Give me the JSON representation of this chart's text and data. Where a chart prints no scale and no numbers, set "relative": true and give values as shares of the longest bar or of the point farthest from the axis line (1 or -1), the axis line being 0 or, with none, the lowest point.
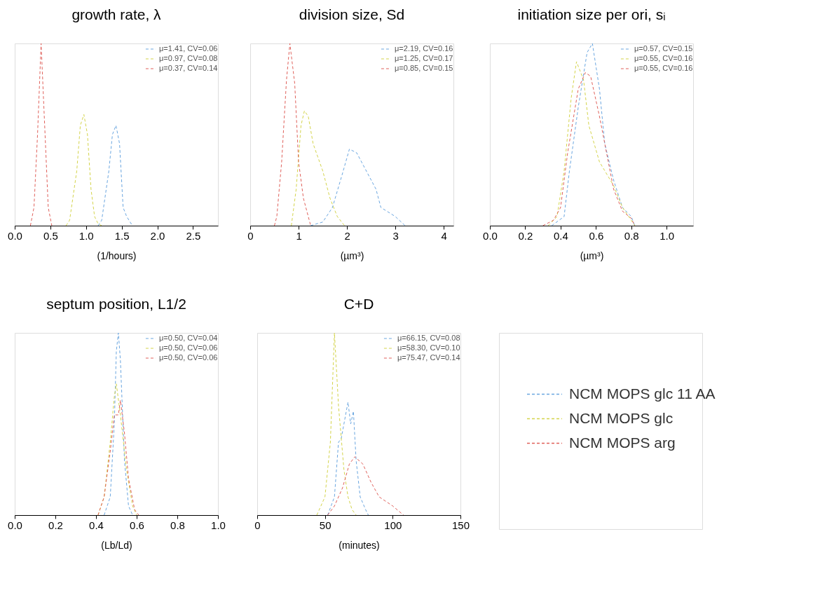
{
  "chart_data": [
    {
      "type": "line",
      "title": "growth rate, λ",
      "xlabel": "(1/hours)",
      "relative": true,
      "legend": "top right",
      "line_style": "dashed",
      "xlim": [
        0,
        2.85
      ],
      "xticks": [
        {
          "value": 0,
          "label": "0.0"
        },
        {
          "value": 0.5,
          "label": "0.5"
        },
        {
          "value": 1,
          "label": "1.0"
        },
        {
          "value": 1.5,
          "label": "1.5"
        },
        {
          "value": 2,
          "label": "2.0"
        },
        {
          "value": 2.5,
          "label": "2.5"
        }
      ],
      "series": [
        {
          "name": "μ=1.41, CV=0.06",
          "color": "#6aa6e0",
          "x": [
            1.17,
            1.22,
            1.32,
            1.37,
            1.42,
            1.47,
            1.52,
            1.57,
            1.65
          ],
          "values": [
            0,
            0.03,
            0.3,
            0.5,
            0.55,
            0.45,
            0.1,
            0.05,
            0
          ]
        },
        {
          "name": "μ=0.97, CV=0.08",
          "color": "#d4d44a",
          "x": [
            0.72,
            0.77,
            0.87,
            0.92,
            0.97,
            1.02,
            1.07,
            1.12,
            1.17,
            1.22
          ],
          "values": [
            0,
            0.03,
            0.3,
            0.55,
            0.61,
            0.5,
            0.2,
            0.05,
            0.01,
            0
          ]
        },
        {
          "name": "μ=0.37, CV=0.14",
          "color": "#e0605a",
          "x": [
            0.22,
            0.27,
            0.32,
            0.37,
            0.42,
            0.47,
            0.52
          ],
          "values": [
            0,
            0.1,
            0.5,
            1.0,
            0.55,
            0.1,
            0
          ]
        }
      ]
    },
    {
      "type": "line",
      "title": "division size, Sd",
      "xlabel": "(µm³)",
      "relative": true,
      "legend": "top right",
      "line_style": "dashed",
      "xlim": [
        0,
        4.2
      ],
      "xticks": [
        0,
        1,
        2,
        3,
        4
      ],
      "series": [
        {
          "name": "μ=2.19, CV=0.16",
          "color": "#6aa6e0",
          "x": [
            1.25,
            1.5,
            1.7,
            1.9,
            2.05,
            2.2,
            2.4,
            2.6,
            2.7,
            3.0,
            3.2
          ],
          "values": [
            0,
            0.02,
            0.1,
            0.28,
            0.42,
            0.4,
            0.3,
            0.2,
            0.1,
            0.05,
            0
          ]
        },
        {
          "name": "μ=1.25, CV=0.17",
          "color": "#d4d44a",
          "x": [
            0.85,
            0.95,
            1.05,
            1.12,
            1.2,
            1.3,
            1.5,
            1.65,
            1.8,
            1.95
          ],
          "values": [
            0,
            0.2,
            0.55,
            0.63,
            0.6,
            0.45,
            0.3,
            0.15,
            0.05,
            0
          ]
        },
        {
          "name": "μ=0.85, CV=0.15",
          "color": "#e0605a",
          "x": [
            0.5,
            0.55,
            0.65,
            0.75,
            0.82,
            0.92,
            1.0,
            1.1,
            1.25
          ],
          "values": [
            0,
            0.05,
            0.35,
            0.8,
            1.0,
            0.78,
            0.35,
            0.15,
            0
          ]
        }
      ]
    },
    {
      "type": "line",
      "title": "initiation size per ori, sᵢ",
      "xlabel": "(µm³)",
      "relative": true,
      "legend": "top right",
      "line_style": "dashed",
      "xlim": [
        0,
        1.15
      ],
      "xticks": [
        {
          "value": 0,
          "label": "0.0"
        },
        {
          "value": 0.2,
          "label": "0.2"
        },
        {
          "value": 0.4,
          "label": "0.4"
        },
        {
          "value": 0.6,
          "label": "0.6"
        },
        {
          "value": 0.8,
          "label": "0.8"
        },
        {
          "value": 1,
          "label": "1.0"
        }
      ],
      "series": [
        {
          "name": "μ=0.57, CV=0.15",
          "color": "#6aa6e0",
          "x": [
            0.35,
            0.42,
            0.45,
            0.5,
            0.55,
            0.58,
            0.62,
            0.65,
            0.7,
            0.75,
            0.8,
            0.82
          ],
          "values": [
            0,
            0.05,
            0.3,
            0.65,
            0.95,
            1.0,
            0.75,
            0.45,
            0.25,
            0.1,
            0.05,
            0
          ]
        },
        {
          "name": "μ=0.55, CV=0.16",
          "color": "#d4d44a",
          "x": [
            0.33,
            0.38,
            0.42,
            0.46,
            0.49,
            0.53,
            0.56,
            0.62,
            0.7,
            0.75,
            0.8,
            0.82
          ],
          "values": [
            0,
            0.05,
            0.3,
            0.7,
            0.9,
            0.8,
            0.55,
            0.35,
            0.22,
            0.1,
            0.03,
            0
          ]
        },
        {
          "name": "μ=0.55, CV=0.16",
          "color": "#e0605a",
          "x": [
            0.3,
            0.36,
            0.4,
            0.44,
            0.5,
            0.54,
            0.57,
            0.62,
            0.66,
            0.7,
            0.75,
            0.8,
            0.82
          ],
          "values": [
            0,
            0.03,
            0.1,
            0.4,
            0.75,
            0.84,
            0.82,
            0.6,
            0.4,
            0.2,
            0.08,
            0.04,
            0
          ]
        }
      ]
    },
    {
      "type": "line",
      "title": "septum position, L1/2",
      "xlabel": "(Lb/Ld)",
      "relative": true,
      "legend": "top right",
      "line_style": "dashed",
      "xlim": [
        0,
        1
      ],
      "xticks": [
        {
          "value": 0,
          "label": "0.0"
        },
        {
          "value": 0.2,
          "label": "0.2"
        },
        {
          "value": 0.4,
          "label": "0.4"
        },
        {
          "value": 0.6,
          "label": "0.6"
        },
        {
          "value": 0.8,
          "label": "0.8"
        },
        {
          "value": 1,
          "label": "1.0"
        }
      ],
      "series": [
        {
          "name": "μ=0.50, CV=0.04",
          "color": "#6aa6e0",
          "x": [
            0.44,
            0.47,
            0.49,
            0.5,
            0.51,
            0.52,
            0.54,
            0.56,
            0.58
          ],
          "values": [
            0,
            0.1,
            0.5,
            0.9,
            1.0,
            0.85,
            0.3,
            0.05,
            0
          ]
        },
        {
          "name": "μ=0.50, CV=0.06",
          "color": "#d4d44a",
          "x": [
            0.41,
            0.44,
            0.47,
            0.49,
            0.5,
            0.52,
            0.55,
            0.58,
            0.6
          ],
          "values": [
            0,
            0.1,
            0.4,
            0.65,
            0.72,
            0.55,
            0.25,
            0.05,
            0
          ]
        },
        {
          "name": "μ=0.50, CV=0.06",
          "color": "#e0605a",
          "x": [
            0.41,
            0.44,
            0.47,
            0.49,
            0.51,
            0.52,
            0.54,
            0.56,
            0.59,
            0.61
          ],
          "values": [
            0,
            0.1,
            0.35,
            0.55,
            0.55,
            0.63,
            0.45,
            0.2,
            0.03,
            0
          ]
        }
      ]
    },
    {
      "type": "line",
      "title": "C+D",
      "xlabel": "(minutes)",
      "relative": true,
      "legend": "top right",
      "line_style": "dashed",
      "xlim": [
        0,
        150
      ],
      "xticks": [
        0,
        50,
        100,
        150
      ],
      "series": [
        {
          "name": "μ=66.15, CV=0.08",
          "color": "#6aa6e0",
          "x": [
            52,
            57,
            60,
            62,
            67,
            69,
            71,
            73,
            76,
            80,
            82
          ],
          "values": [
            0,
            0.1,
            0.4,
            0.42,
            0.62,
            0.5,
            0.57,
            0.3,
            0.1,
            0.03,
            0
          ]
        },
        {
          "name": "μ=58.30, CV=0.10",
          "color": "#d4d44a",
          "x": [
            44,
            50,
            54,
            57,
            60,
            64,
            67,
            70,
            73
          ],
          "values": [
            0,
            0.1,
            0.4,
            1.0,
            0.6,
            0.25,
            0.1,
            0.03,
            0
          ]
        },
        {
          "name": "μ=75.47, CV=0.14",
          "color": "#e0605a",
          "x": [
            52,
            57,
            63,
            68,
            72,
            78,
            84,
            90,
            100,
            108
          ],
          "values": [
            0,
            0.05,
            0.15,
            0.28,
            0.32,
            0.28,
            0.18,
            0.1,
            0.05,
            0
          ]
        }
      ]
    },
    {
      "type": "other",
      "categories": [
        "NCM MOPS glc 11 AA",
        "NCM MOPS glc",
        "NCM MOPS arg"
      ],
      "colors": [
        "#6aa6e0",
        "#d4d44a",
        "#e0605a"
      ]
    }
  ]
}
